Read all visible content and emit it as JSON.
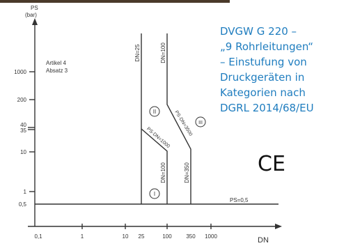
{
  "axes": {
    "y_title": "PS",
    "y_unit": "(bar)",
    "x_title": "DN",
    "y_ticks": [
      "1000",
      "200",
      "40",
      "35",
      "10",
      "1",
      "0,5"
    ],
    "x_ticks": [
      "0,1",
      "1",
      "10",
      "25",
      "100",
      "350",
      "1000"
    ]
  },
  "annotations": {
    "article": "Artikel 4",
    "paragraph": "Absatz 3",
    "dn25": "DN=25",
    "dn100_upper": "DN=100",
    "dn100_lower": "DN=100",
    "dn350": "DN=350",
    "ps_dn_1000": "PS·DN=1000",
    "ps_dn_3500": "PS·DN=3500",
    "ps_05": "PS=0,5",
    "category_1": "I",
    "category_2": "II",
    "category_3": "III"
  },
  "side_text": {
    "lines": [
      "DVGW G 220 –",
      "„9 Rohrleitungen“",
      "– Einstufung von",
      "Druckgeräten in",
      "Kategorien nach",
      "DGRL 2014/68/EU"
    ]
  },
  "mark": "CE"
}
